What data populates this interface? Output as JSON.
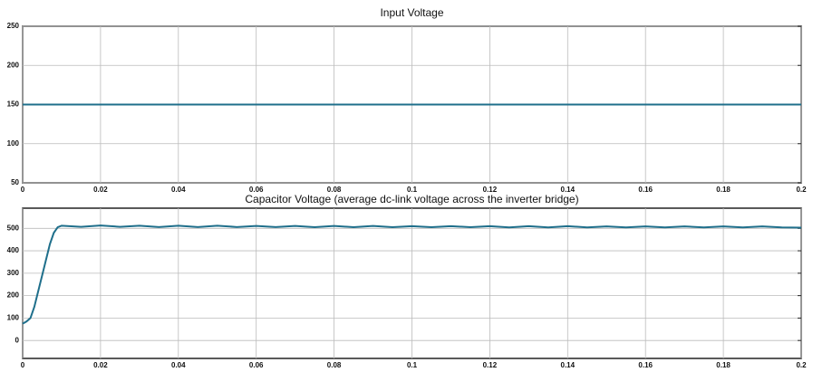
{
  "chart_data": [
    {
      "type": "line",
      "title": "Input Voltage",
      "x": [
        0,
        0.2
      ],
      "series": [
        {
          "color": "#1f6f8b",
          "values": [
            150,
            150
          ]
        }
      ],
      "xlim": [
        0,
        0.2
      ],
      "xticks": [
        0,
        0.02,
        0.04,
        0.06,
        0.08,
        0.1,
        0.12,
        0.14,
        0.16,
        0.18,
        0.2
      ],
      "ylim": [
        50,
        250
      ],
      "yticks": [
        50,
        100,
        150,
        200,
        250
      ],
      "grid": true
    },
    {
      "type": "line",
      "title": "Capacitor Voltage (average dc-link voltage across the inverter bridge)",
      "x": [
        0,
        0.001,
        0.002,
        0.003,
        0.004,
        0.005,
        0.006,
        0.007,
        0.008,
        0.009,
        0.01,
        0.015,
        0.02,
        0.025,
        0.03,
        0.035,
        0.04,
        0.045,
        0.05,
        0.055,
        0.06,
        0.065,
        0.07,
        0.075,
        0.08,
        0.085,
        0.09,
        0.095,
        0.1,
        0.105,
        0.11,
        0.115,
        0.12,
        0.125,
        0.13,
        0.135,
        0.14,
        0.145,
        0.15,
        0.155,
        0.16,
        0.165,
        0.17,
        0.175,
        0.18,
        0.185,
        0.19,
        0.195,
        0.2
      ],
      "series": [
        {
          "color": "#1f6f8b",
          "values": [
            75,
            85,
            100,
            150,
            220,
            290,
            360,
            430,
            480,
            505,
            512,
            507,
            513,
            507,
            512,
            506,
            512,
            506,
            512,
            506,
            511,
            506,
            511,
            505,
            511,
            505,
            511,
            505,
            510,
            505,
            510,
            505,
            510,
            504,
            510,
            504,
            510,
            504,
            509,
            504,
            509,
            504,
            509,
            504,
            509,
            504,
            509,
            504,
            503
          ]
        }
      ],
      "xlim": [
        0,
        0.2
      ],
      "xticks": [
        0,
        0.02,
        0.04,
        0.06,
        0.08,
        0.1,
        0.12,
        0.14,
        0.16,
        0.18,
        0.2
      ],
      "ylim": [
        -80,
        590
      ],
      "yticks": [
        0,
        100,
        200,
        300,
        400,
        500
      ],
      "grid": true
    }
  ]
}
